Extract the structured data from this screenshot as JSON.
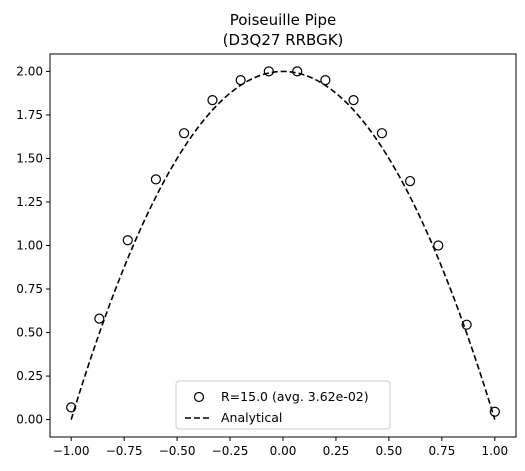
{
  "chart_data": {
    "type": "scatter",
    "title": "Poiseuille Pipe",
    "subtitle": "(D3Q27 RRBGK)",
    "xlabel": "",
    "ylabel": "",
    "xlim": [
      -1.1,
      1.1
    ],
    "ylim": [
      -0.1,
      2.1
    ],
    "xticks": [
      -1.0,
      -0.75,
      -0.5,
      -0.25,
      0.0,
      0.25,
      0.5,
      0.75,
      1.0
    ],
    "xtick_labels": [
      "−1.00",
      "−0.75",
      "−0.50",
      "−0.25",
      "0.00",
      "0.25",
      "0.50",
      "0.75",
      "1.00"
    ],
    "yticks": [
      0.0,
      0.25,
      0.5,
      0.75,
      1.0,
      1.25,
      1.5,
      1.75,
      2.0
    ],
    "ytick_labels": [
      "0.00",
      "0.25",
      "0.50",
      "0.75",
      "1.00",
      "1.25",
      "1.50",
      "1.75",
      "2.00"
    ],
    "grid": false,
    "legend_position": "bottom-center",
    "series": [
      {
        "name": "R=15.0 (avg. 3.62e-02)",
        "marker": "open-circle",
        "color": "#000000",
        "x": [
          -1.0,
          -0.867,
          -0.733,
          -0.6,
          -0.467,
          -0.333,
          -0.2,
          -0.067,
          0.067,
          0.2,
          0.333,
          0.467,
          0.6,
          0.733,
          0.867,
          1.0
        ],
        "y": [
          0.07,
          0.58,
          1.03,
          1.38,
          1.645,
          1.835,
          1.95,
          2.0,
          2.0,
          1.95,
          1.835,
          1.645,
          1.37,
          1.0,
          0.545,
          0.045
        ]
      },
      {
        "name": "Analytical",
        "style": "dashed-line",
        "color": "#000000",
        "function": "2*(1-x^2)",
        "x_range": [
          -1.0,
          1.0
        ]
      }
    ]
  }
}
